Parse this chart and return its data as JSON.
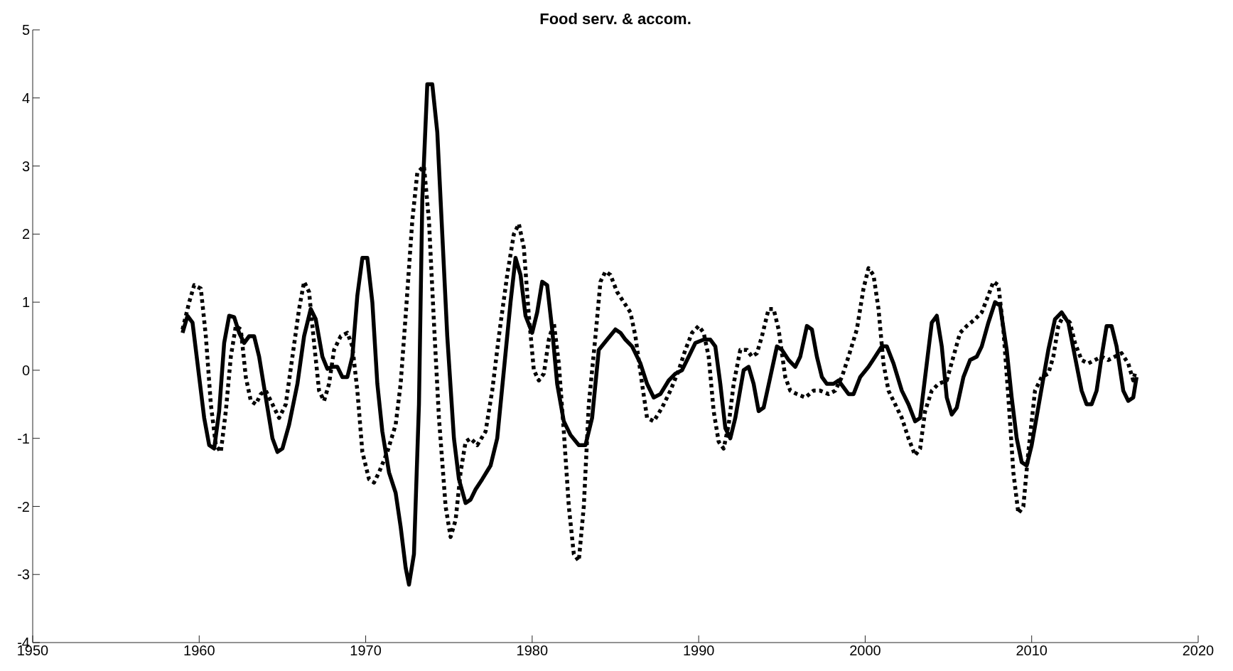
{
  "chart_data": {
    "type": "line",
    "title": "Food serv. & accom.",
    "xlim": [
      1950,
      2020
    ],
    "xticks": [
      1950,
      1960,
      1970,
      1980,
      1990,
      2000,
      2010,
      2020
    ],
    "ylim": [
      -4,
      5
    ],
    "yticks": [
      -4,
      -3,
      -2,
      -1,
      0,
      1,
      2,
      3,
      4,
      5
    ],
    "grid": false,
    "legend": false,
    "marker": "none",
    "series": [
      {
        "color": "#000000",
        "line_style": "solid",
        "x": [
          1959.0,
          1959.3,
          1959.6,
          1960.0,
          1960.3,
          1960.6,
          1960.9,
          1961.2,
          1961.5,
          1961.8,
          1962.1,
          1962.4,
          1962.7,
          1963.0,
          1963.3,
          1963.6,
          1964.0,
          1964.4,
          1964.7,
          1965.0,
          1965.4,
          1965.9,
          1966.3,
          1966.7,
          1967.0,
          1967.4,
          1967.7,
          1968.0,
          1968.3,
          1968.6,
          1968.9,
          1969.2,
          1969.5,
          1969.8,
          1970.1,
          1970.4,
          1970.7,
          1971.0,
          1971.4,
          1971.8,
          1972.1,
          1972.4,
          1972.6,
          1972.9,
          1973.2,
          1973.4,
          1973.7,
          1974.0,
          1974.3,
          1974.6,
          1974.9,
          1975.3,
          1975.6,
          1976.0,
          1976.3,
          1976.6,
          1977.0,
          1977.5,
          1977.9,
          1978.3,
          1978.7,
          1979.0,
          1979.3,
          1979.6,
          1980.0,
          1980.3,
          1980.6,
          1980.9,
          1981.2,
          1981.5,
          1981.9,
          1982.3,
          1982.8,
          1983.2,
          1983.6,
          1984.0,
          1984.5,
          1985.0,
          1985.3,
          1985.6,
          1986.0,
          1986.5,
          1986.9,
          1987.3,
          1987.7,
          1988.2,
          1988.6,
          1989.0,
          1989.4,
          1989.8,
          1990.3,
          1990.7,
          1991.0,
          1991.3,
          1991.6,
          1991.9,
          1992.2,
          1992.7,
          1993.0,
          1993.3,
          1993.6,
          1993.9,
          1994.3,
          1994.7,
          1995.0,
          1995.4,
          1995.8,
          1996.1,
          1996.5,
          1996.8,
          1997.1,
          1997.4,
          1997.7,
          1998.1,
          1998.4,
          1998.7,
          1999.0,
          1999.3,
          1999.7,
          2000.2,
          2000.6,
          2001.0,
          2001.3,
          2001.7,
          2002.2,
          2002.6,
          2003.0,
          2003.3,
          2003.7,
          2004.0,
          2004.3,
          2004.6,
          2004.9,
          2005.2,
          2005.5,
          2005.9,
          2006.3,
          2006.7,
          2007.0,
          2007.4,
          2007.8,
          2008.1,
          2008.5,
          2008.8,
          2009.1,
          2009.4,
          2009.7,
          2010.0,
          2010.5,
          2011.0,
          2011.4,
          2011.8,
          2012.2,
          2012.6,
          2013.0,
          2013.3,
          2013.6,
          2013.9,
          2014.2,
          2014.5,
          2014.8,
          2015.1,
          2015.5,
          2015.8,
          2016.1,
          2016.3
        ],
        "values": [
          0.55,
          0.8,
          0.7,
          -0.1,
          -0.7,
          -1.1,
          -1.15,
          -0.6,
          0.4,
          0.8,
          0.78,
          0.55,
          0.4,
          0.5,
          0.5,
          0.2,
          -0.4,
          -1.0,
          -1.2,
          -1.15,
          -0.8,
          -0.2,
          0.5,
          0.9,
          0.75,
          0.2,
          0.02,
          0.05,
          0.05,
          -0.1,
          -0.1,
          0.2,
          1.1,
          1.65,
          1.65,
          1.0,
          -0.2,
          -0.9,
          -1.5,
          -1.8,
          -2.3,
          -2.9,
          -3.15,
          -2.7,
          -0.5,
          2.5,
          4.2,
          4.2,
          3.5,
          2.0,
          0.5,
          -1.0,
          -1.6,
          -1.95,
          -1.9,
          -1.75,
          -1.6,
          -1.4,
          -1.0,
          0.0,
          1.0,
          1.65,
          1.4,
          0.8,
          0.55,
          0.85,
          1.3,
          1.25,
          0.6,
          -0.2,
          -0.75,
          -0.95,
          -1.1,
          -1.1,
          -0.7,
          0.3,
          0.45,
          0.6,
          0.55,
          0.45,
          0.35,
          0.1,
          -0.2,
          -0.4,
          -0.35,
          -0.15,
          -0.05,
          0.0,
          0.2,
          0.4,
          0.45,
          0.45,
          0.35,
          -0.2,
          -0.85,
          -1.0,
          -0.7,
          0.0,
          0.05,
          -0.2,
          -0.6,
          -0.55,
          -0.1,
          0.35,
          0.3,
          0.15,
          0.05,
          0.2,
          0.65,
          0.6,
          0.2,
          -0.1,
          -0.2,
          -0.2,
          -0.15,
          -0.25,
          -0.35,
          -0.35,
          -0.1,
          0.05,
          0.2,
          0.35,
          0.35,
          0.1,
          -0.3,
          -0.5,
          -0.75,
          -0.7,
          0.1,
          0.7,
          0.8,
          0.35,
          -0.4,
          -0.65,
          -0.55,
          -0.1,
          0.15,
          0.2,
          0.35,
          0.7,
          1.0,
          0.95,
          0.3,
          -0.4,
          -1.0,
          -1.35,
          -1.4,
          -1.1,
          -0.4,
          0.3,
          0.75,
          0.85,
          0.7,
          0.2,
          -0.3,
          -0.5,
          -0.5,
          -0.3,
          0.2,
          0.65,
          0.65,
          0.35,
          -0.3,
          -0.45,
          -0.4,
          -0.1
        ]
      },
      {
        "color": "#000000",
        "line_style": "dotted",
        "x": [
          1959.0,
          1959.4,
          1959.7,
          1960.1,
          1960.4,
          1960.7,
          1961.0,
          1961.3,
          1961.6,
          1961.9,
          1962.2,
          1962.5,
          1962.8,
          1963.1,
          1963.4,
          1963.7,
          1964.0,
          1964.4,
          1964.8,
          1965.2,
          1965.6,
          1966.0,
          1966.3,
          1966.6,
          1966.9,
          1967.2,
          1967.5,
          1967.8,
          1968.1,
          1968.5,
          1968.9,
          1969.2,
          1969.5,
          1969.8,
          1970.2,
          1970.5,
          1970.8,
          1971.3,
          1971.8,
          1972.1,
          1972.4,
          1972.8,
          1973.1,
          1973.5,
          1973.8,
          1974.1,
          1974.4,
          1974.8,
          1975.1,
          1975.4,
          1975.7,
          1976.0,
          1976.3,
          1976.7,
          1977.2,
          1977.6,
          1978.0,
          1978.5,
          1978.9,
          1979.2,
          1979.5,
          1979.8,
          1980.1,
          1980.4,
          1980.7,
          1981.0,
          1981.3,
          1981.6,
          1981.9,
          1982.2,
          1982.5,
          1982.8,
          1983.1,
          1983.4,
          1983.8,
          1984.1,
          1984.4,
          1984.7,
          1985.1,
          1985.5,
          1985.9,
          1986.2,
          1986.6,
          1986.9,
          1987.3,
          1987.8,
          1988.3,
          1988.8,
          1989.2,
          1989.6,
          1990.0,
          1990.3,
          1990.6,
          1990.9,
          1991.2,
          1991.5,
          1991.8,
          1992.1,
          1992.5,
          1992.9,
          1993.2,
          1993.5,
          1993.8,
          1994.2,
          1994.5,
          1994.8,
          1995.2,
          1995.5,
          1995.9,
          1996.4,
          1996.9,
          1997.3,
          1997.8,
          1998.2,
          1998.6,
          1999.0,
          1999.5,
          1999.9,
          2000.2,
          2000.5,
          2000.8,
          2001.1,
          2001.4,
          2001.8,
          2002.2,
          2002.6,
          2003.0,
          2003.3,
          2003.6,
          2004.0,
          2004.4,
          2004.9,
          2005.3,
          2005.7,
          2006.1,
          2006.6,
          2007.0,
          2007.4,
          2007.7,
          2008.0,
          2008.3,
          2008.6,
          2008.9,
          2009.2,
          2009.5,
          2009.8,
          2010.2,
          2010.6,
          2011.0,
          2011.3,
          2011.6,
          2011.9,
          2012.3,
          2012.6,
          2013.0,
          2013.4,
          2013.8,
          2014.2,
          2014.6,
          2015.0,
          2015.4,
          2015.8,
          2016.1,
          2016.2
        ],
        "values": [
          0.6,
          1.0,
          1.25,
          1.2,
          0.5,
          -0.5,
          -1.1,
          -1.2,
          -0.6,
          0.2,
          0.65,
          0.6,
          -0.1,
          -0.45,
          -0.5,
          -0.35,
          -0.3,
          -0.5,
          -0.7,
          -0.5,
          0.2,
          0.9,
          1.3,
          1.15,
          0.4,
          -0.3,
          -0.45,
          -0.2,
          0.3,
          0.5,
          0.55,
          0.35,
          -0.3,
          -1.2,
          -1.6,
          -1.65,
          -1.5,
          -1.2,
          -0.8,
          -0.2,
          0.8,
          2.2,
          2.9,
          3.0,
          2.2,
          0.7,
          -0.7,
          -2.0,
          -2.45,
          -2.2,
          -1.5,
          -1.05,
          -1.0,
          -1.1,
          -0.9,
          -0.3,
          0.5,
          1.4,
          2.0,
          2.15,
          1.8,
          0.8,
          0.0,
          -0.15,
          -0.05,
          0.45,
          0.7,
          0.1,
          -0.9,
          -2.0,
          -2.7,
          -2.8,
          -2.0,
          -0.5,
          0.5,
          1.3,
          1.45,
          1.4,
          1.15,
          1.0,
          0.85,
          0.5,
          -0.2,
          -0.7,
          -0.75,
          -0.55,
          -0.3,
          0.0,
          0.3,
          0.55,
          0.65,
          0.55,
          0.2,
          -0.6,
          -1.05,
          -1.15,
          -0.8,
          -0.2,
          0.3,
          0.3,
          0.2,
          0.25,
          0.5,
          0.9,
          0.9,
          0.6,
          -0.1,
          -0.3,
          -0.35,
          -0.4,
          -0.3,
          -0.3,
          -0.35,
          -0.3,
          -0.1,
          0.2,
          0.6,
          1.2,
          1.5,
          1.4,
          0.9,
          0.1,
          -0.3,
          -0.5,
          -0.7,
          -1.0,
          -1.25,
          -1.15,
          -0.6,
          -0.3,
          -0.2,
          -0.15,
          0.2,
          0.55,
          0.65,
          0.75,
          0.85,
          1.1,
          1.3,
          1.25,
          0.6,
          -0.4,
          -1.5,
          -2.1,
          -2.0,
          -1.2,
          -0.3,
          -0.1,
          -0.05,
          0.2,
          0.65,
          0.8,
          0.7,
          0.4,
          0.15,
          0.1,
          0.15,
          0.2,
          0.15,
          0.2,
          0.25,
          0.1,
          -0.15,
          -0.05
        ]
      }
    ]
  }
}
